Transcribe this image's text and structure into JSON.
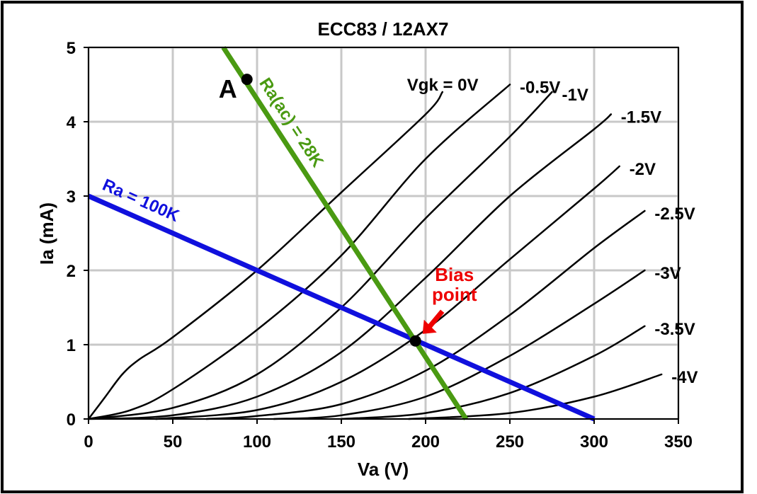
{
  "chart_data": {
    "type": "line",
    "title": "ECC83 / 12AX7",
    "xlabel": "Va (V)",
    "ylabel": "Ia (mA)",
    "xlim": [
      0,
      350
    ],
    "ylim": [
      0,
      5
    ],
    "x_ticks": [
      "0",
      "50",
      "100",
      "150",
      "200",
      "250",
      "300",
      "350"
    ],
    "y_ticks": [
      "0",
      "1",
      "2",
      "3",
      "4",
      "5"
    ],
    "grid": true,
    "series": [
      {
        "name": "Vgk = 0V",
        "points": [
          [
            0,
            0
          ],
          [
            10,
            0.3
          ],
          [
            20,
            0.6
          ],
          [
            30,
            0.8
          ],
          [
            50,
            1.1
          ],
          [
            100,
            2.0
          ],
          [
            150,
            3.05
          ],
          [
            200,
            4.1
          ],
          [
            210,
            4.4
          ]
        ]
      },
      {
        "name": "-0.5V",
        "points": [
          [
            0,
            0
          ],
          [
            25,
            0.12
          ],
          [
            50,
            0.4
          ],
          [
            100,
            1.2
          ],
          [
            150,
            2.2
          ],
          [
            200,
            3.5
          ],
          [
            250,
            4.5
          ]
        ]
      },
      {
        "name": "-1V",
        "points": [
          [
            0,
            0
          ],
          [
            50,
            0.15
          ],
          [
            100,
            0.6
          ],
          [
            150,
            1.5
          ],
          [
            200,
            2.7
          ],
          [
            250,
            3.8
          ],
          [
            275,
            4.4
          ]
        ]
      },
      {
        "name": "-1.5V",
        "points": [
          [
            0,
            0
          ],
          [
            50,
            0.05
          ],
          [
            100,
            0.3
          ],
          [
            150,
            0.9
          ],
          [
            200,
            1.9
          ],
          [
            250,
            3.0
          ],
          [
            300,
            3.9
          ],
          [
            310,
            4.1
          ]
        ]
      },
      {
        "name": "-2V",
        "points": [
          [
            40,
            0
          ],
          [
            100,
            0.12
          ],
          [
            150,
            0.5
          ],
          [
            200,
            1.2
          ],
          [
            250,
            2.15
          ],
          [
            300,
            3.1
          ],
          [
            315,
            3.4
          ]
        ]
      },
      {
        "name": "-2.5V",
        "points": [
          [
            70,
            0
          ],
          [
            100,
            0.04
          ],
          [
            150,
            0.2
          ],
          [
            200,
            0.65
          ],
          [
            250,
            1.4
          ],
          [
            300,
            2.3
          ],
          [
            330,
            2.8
          ]
        ]
      },
      {
        "name": "-3V",
        "points": [
          [
            110,
            0
          ],
          [
            150,
            0.05
          ],
          [
            200,
            0.3
          ],
          [
            250,
            0.85
          ],
          [
            300,
            1.55
          ],
          [
            330,
            2.0
          ]
        ]
      },
      {
        "name": "-3.5V",
        "points": [
          [
            150,
            0
          ],
          [
            200,
            0.08
          ],
          [
            250,
            0.35
          ],
          [
            300,
            0.85
          ],
          [
            330,
            1.25
          ]
        ]
      },
      {
        "name": "-4V",
        "points": [
          [
            190,
            0
          ],
          [
            250,
            0.08
          ],
          [
            300,
            0.3
          ],
          [
            340,
            0.6
          ]
        ]
      }
    ],
    "load_lines": [
      {
        "name": "Ra = 100K",
        "color": "#1010dd",
        "points": [
          [
            0,
            3
          ],
          [
            300,
            0
          ]
        ]
      },
      {
        "name": "Ra(ac) = 28K",
        "color": "#4a9a12",
        "points": [
          [
            80,
            5
          ],
          [
            224,
            0
          ]
        ]
      }
    ],
    "markers": [
      {
        "label": "A",
        "x": 94,
        "y": 4.57
      },
      {
        "label": "Bias point",
        "x": 194,
        "y": 1.05
      }
    ],
    "annotation_color": "#ee0000",
    "curve_color": "#000000",
    "grid_color": "#c8c8c8"
  }
}
